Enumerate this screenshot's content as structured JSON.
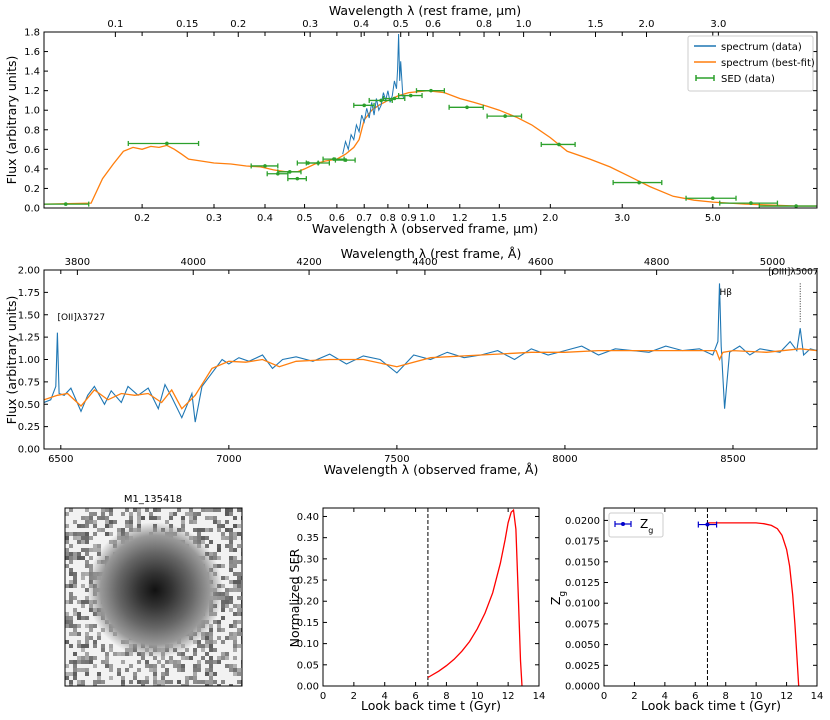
{
  "chart_data": [
    {
      "type": "line",
      "id": "sed",
      "xscale": "log",
      "xlabel": "Wavelength λ (observed frame, μm)",
      "x2label": "Wavelength λ (rest frame, μm)",
      "ylabel": "Flux (arbitrary units)",
      "xlim": [
        0.115,
        9.0
      ],
      "ylim": [
        0,
        1.8
      ],
      "x_ticks": [
        0.2,
        0.3,
        0.4,
        0.5,
        0.6,
        0.7,
        0.8,
        0.9,
        1.0,
        1.2,
        1.5,
        2.0,
        3.0,
        5.0
      ],
      "x_tick_labels": [
        "0.2",
        "0.3",
        "0.4",
        "0.5",
        "0.6",
        "0.7",
        "0.8",
        "0.9",
        "1.0",
        "1.2",
        "1.5",
        "2.0",
        "3.0",
        "5.0"
      ],
      "x2_ticks": [
        0.1,
        0.15,
        0.2,
        0.3,
        0.4,
        0.5,
        0.6,
        0.8,
        1.0,
        1.5,
        2.0,
        3.0
      ],
      "x2_tick_labels": [
        "0.1",
        "0.15",
        "0.2",
        "0.3",
        "0.4",
        "0.5",
        "0.6",
        "0.8",
        "1.0",
        "1.5",
        "2.0",
        "3.0"
      ],
      "redshift_factor": 1.72,
      "y_ticks": [
        0,
        0.2,
        0.4,
        0.6,
        0.8,
        1.0,
        1.2,
        1.4,
        1.6,
        1.8
      ],
      "y_tick_labels": [
        "0.0",
        "0.2",
        "0.4",
        "0.6",
        "0.8",
        "1.0",
        "1.2",
        "1.4",
        "1.6",
        "1.8"
      ],
      "legend": {
        "position": "top-right",
        "entries": [
          "spectrum (data)",
          "spectrum (best-fit)",
          "SED (data)"
        ]
      },
      "series": [
        {
          "name": "spectrum (best-fit)",
          "color": "#ff7f0e",
          "x": [
            0.115,
            0.15,
            0.16,
            0.17,
            0.18,
            0.19,
            0.2,
            0.21,
            0.22,
            0.23,
            0.24,
            0.25,
            0.26,
            0.28,
            0.3,
            0.33,
            0.36,
            0.39,
            0.42,
            0.45,
            0.48,
            0.5,
            0.53,
            0.56,
            0.6,
            0.63,
            0.66,
            0.68,
            0.7,
            0.73,
            0.76,
            0.8,
            0.85,
            0.9,
            1.0,
            1.1,
            1.2,
            1.3,
            1.4,
            1.5,
            1.65,
            1.8,
            2.0,
            2.2,
            2.5,
            2.8,
            3.1,
            3.5,
            4.0,
            4.5,
            5.0,
            5.5,
            6.0,
            7.0,
            8.0,
            9.0
          ],
          "y": [
            0.04,
            0.05,
            0.3,
            0.45,
            0.58,
            0.62,
            0.6,
            0.63,
            0.62,
            0.64,
            0.6,
            0.55,
            0.5,
            0.48,
            0.46,
            0.45,
            0.43,
            0.42,
            0.39,
            0.37,
            0.37,
            0.4,
            0.45,
            0.48,
            0.5,
            0.55,
            0.62,
            0.7,
            0.9,
            1.0,
            1.05,
            1.1,
            1.15,
            1.18,
            1.2,
            1.18,
            1.12,
            1.08,
            1.04,
            1.0,
            0.93,
            0.85,
            0.72,
            0.58,
            0.5,
            0.42,
            0.33,
            0.22,
            0.12,
            0.08,
            0.06,
            0.05,
            0.04,
            0.03,
            0.02,
            0.02
          ]
        },
        {
          "name": "spectrum (data)",
          "color": "#1f77b4",
          "x": [
            0.62,
            0.63,
            0.64,
            0.65,
            0.66,
            0.67,
            0.68,
            0.69,
            0.7,
            0.71,
            0.72,
            0.73,
            0.74,
            0.75,
            0.76,
            0.77,
            0.78,
            0.79,
            0.8,
            0.81,
            0.82,
            0.83,
            0.84,
            0.845,
            0.85,
            0.855,
            0.86,
            0.87,
            0.875
          ],
          "y": [
            0.55,
            0.68,
            0.6,
            0.75,
            0.7,
            0.85,
            0.78,
            0.95,
            0.88,
            1.02,
            0.92,
            1.08,
            0.95,
            1.12,
            1.0,
            1.05,
            1.18,
            1.1,
            1.2,
            1.08,
            1.15,
            1.3,
            1.22,
            1.42,
            1.78,
            1.3,
            1.5,
            1.15,
            1.12
          ]
        }
      ],
      "sed_points": {
        "name": "SED (data)",
        "color": "#2ca02c",
        "x": [
          0.13,
          0.23,
          0.4,
          0.43,
          0.46,
          0.48,
          0.51,
          0.54,
          0.59,
          0.63,
          0.7,
          0.77,
          0.83,
          0.91,
          1.02,
          1.25,
          1.55,
          2.1,
          3.3,
          5.0,
          6.2,
          8.0
        ],
        "xerr": [
          0.018,
          0.045,
          0.03,
          0.025,
          0.03,
          0.025,
          0.03,
          0.035,
          0.035,
          0.035,
          0.04,
          0.05,
          0.05,
          0.06,
          0.08,
          0.12,
          0.15,
          0.2,
          0.45,
          0.7,
          1.0,
          1.5
        ],
        "y": [
          0.04,
          0.66,
          0.43,
          0.35,
          0.37,
          0.3,
          0.46,
          0.46,
          0.5,
          0.49,
          1.05,
          1.1,
          1.12,
          1.15,
          1.2,
          1.03,
          0.94,
          0.65,
          0.26,
          0.1,
          0.05,
          0.02
        ]
      }
    },
    {
      "type": "line",
      "id": "spectrum",
      "xlabel": "Wavelength λ (observed frame, Å)",
      "x2label": "Wavelength λ (rest frame, Å)",
      "ylabel": "Flux (arbitrary units)",
      "xlim": [
        6450,
        8750
      ],
      "ylim": [
        0,
        2.0
      ],
      "x_ticks": [
        6500,
        7000,
        7500,
        8000,
        8500
      ],
      "x_tick_labels": [
        "6500",
        "7000",
        "7500",
        "8000",
        "8500"
      ],
      "x2_ticks": [
        3800,
        4000,
        4200,
        4400,
        4600,
        4800,
        5000
      ],
      "x2_tick_labels": [
        "3800",
        "4000",
        "4200",
        "4400",
        "4600",
        "4800",
        "5000"
      ],
      "redshift_factor": 1.7235,
      "y_ticks": [
        0,
        0.25,
        0.5,
        0.75,
        1.0,
        1.25,
        1.5,
        1.75,
        2.0
      ],
      "y_tick_labels": [
        "0.00",
        "0.25",
        "0.50",
        "0.75",
        "1.00",
        "1.25",
        "1.50",
        "1.75",
        "2.00"
      ],
      "annotations": [
        {
          "text": "[OII]λ3727",
          "x": 6490,
          "y": 1.33
        },
        {
          "text": "Hβ",
          "x": 8460,
          "y": 1.72
        },
        {
          "text": "[OIII]λ5007",
          "x": 8680,
          "y": 1.95
        }
      ],
      "series": [
        {
          "name": "spectrum (data)",
          "color": "#1f77b4",
          "x": [
            6450,
            6470,
            6485,
            6490,
            6495,
            6510,
            6530,
            6560,
            6580,
            6600,
            6630,
            6650,
            6680,
            6700,
            6730,
            6760,
            6790,
            6810,
            6830,
            6860,
            6890,
            6900,
            6920,
            6950,
            6980,
            7000,
            7030,
            7060,
            7100,
            7130,
            7160,
            7200,
            7250,
            7300,
            7350,
            7400,
            7450,
            7500,
            7550,
            7600,
            7650,
            7700,
            7750,
            7800,
            7850,
            7900,
            7950,
            8000,
            8050,
            8100,
            8150,
            8200,
            8250,
            8300,
            8350,
            8400,
            8440,
            8455,
            8460,
            8465,
            8475,
            8490,
            8520,
            8550,
            8580,
            8610,
            8640,
            8670,
            8690,
            8700,
            8710,
            8730,
            8750
          ],
          "y": [
            0.52,
            0.55,
            0.7,
            1.3,
            0.62,
            0.6,
            0.68,
            0.42,
            0.6,
            0.7,
            0.5,
            0.65,
            0.52,
            0.7,
            0.6,
            0.68,
            0.45,
            0.72,
            0.58,
            0.35,
            0.62,
            0.3,
            0.7,
            0.85,
            1.0,
            0.95,
            1.02,
            0.98,
            1.05,
            0.9,
            1.0,
            1.03,
            0.98,
            1.06,
            0.95,
            1.04,
            1.0,
            0.85,
            1.05,
            1.0,
            1.08,
            1.02,
            1.05,
            1.1,
            1.0,
            1.12,
            1.05,
            1.1,
            1.15,
            1.05,
            1.12,
            1.1,
            1.08,
            1.15,
            1.1,
            1.12,
            1.05,
            1.2,
            1.85,
            1.15,
            0.45,
            1.08,
            1.15,
            1.05,
            1.12,
            1.1,
            1.08,
            1.2,
            1.1,
            1.35,
            1.05,
            1.12,
            1.1
          ]
        },
        {
          "name": "spectrum (best-fit)",
          "color": "#ff7f0e",
          "x": [
            6450,
            6490,
            6520,
            6560,
            6600,
            6640,
            6680,
            6720,
            6760,
            6800,
            6830,
            6860,
            6900,
            6950,
            7000,
            7050,
            7100,
            7150,
            7200,
            7300,
            7400,
            7500,
            7600,
            7700,
            7800,
            7900,
            8000,
            8100,
            8200,
            8300,
            8400,
            8450,
            8460,
            8470,
            8500,
            8600,
            8700,
            8750
          ],
          "y": [
            0.55,
            0.6,
            0.62,
            0.48,
            0.66,
            0.55,
            0.62,
            0.6,
            0.62,
            0.52,
            0.66,
            0.45,
            0.6,
            0.9,
            0.98,
            0.97,
            1.0,
            0.92,
            0.98,
            1.0,
            1.0,
            0.92,
            1.02,
            1.04,
            1.06,
            1.08,
            1.08,
            1.1,
            1.1,
            1.1,
            1.1,
            1.1,
            1.0,
            1.08,
            1.1,
            1.08,
            1.12,
            1.1
          ]
        }
      ]
    },
    {
      "type": "line",
      "id": "sfr",
      "xlabel": "Look back time t (Gyr)",
      "ylabel": "Normalized SFR",
      "xlim": [
        0,
        14
      ],
      "ylim": [
        0,
        0.42
      ],
      "x_ticks": [
        0,
        2,
        4,
        6,
        8,
        10,
        12,
        14
      ],
      "x_tick_labels": [
        "0",
        "2",
        "4",
        "6",
        "8",
        "10",
        "12",
        "14"
      ],
      "y_ticks": [
        0,
        0.05,
        0.1,
        0.15,
        0.2,
        0.25,
        0.3,
        0.35,
        0.4
      ],
      "y_tick_labels": [
        "0.00",
        "0.05",
        "0.10",
        "0.15",
        "0.20",
        "0.25",
        "0.30",
        "0.35",
        "0.40"
      ],
      "vline_x": 6.8,
      "series": [
        {
          "color": "#ff0000",
          "x": [
            6.8,
            7.5,
            8.0,
            8.5,
            9.0,
            9.5,
            10.0,
            10.5,
            11.0,
            11.5,
            11.8,
            12.0,
            12.2,
            12.35,
            12.5,
            12.65,
            12.8,
            12.9
          ],
          "y": [
            0.02,
            0.035,
            0.048,
            0.063,
            0.082,
            0.105,
            0.135,
            0.172,
            0.22,
            0.29,
            0.345,
            0.385,
            0.41,
            0.415,
            0.37,
            0.22,
            0.06,
            0.0
          ]
        }
      ]
    },
    {
      "type": "line",
      "id": "metallicity",
      "xlabel": "Look back time t (Gyr)",
      "ylabel": "Z_g",
      "xlim": [
        0,
        14
      ],
      "ylim": [
        0,
        0.0215
      ],
      "x_ticks": [
        0,
        2,
        4,
        6,
        8,
        10,
        12,
        14
      ],
      "x_tick_labels": [
        "0",
        "2",
        "4",
        "6",
        "8",
        "10",
        "12",
        "14"
      ],
      "y_ticks": [
        0,
        0.0025,
        0.005,
        0.0075,
        0.01,
        0.0125,
        0.015,
        0.0175,
        0.02
      ],
      "y_tick_labels": [
        "0.0000",
        "0.0025",
        "0.0050",
        "0.0075",
        "0.0100",
        "0.0125",
        "0.0150",
        "0.0175",
        "0.0200"
      ],
      "vline_x": 6.8,
      "legend": {
        "position": "top-left",
        "entries": [
          "Z_g"
        ]
      },
      "point": {
        "name": "Z_g",
        "x": 6.8,
        "xerr": 0.6,
        "y": 0.0195,
        "color": "#0000cc"
      },
      "series": [
        {
          "color": "#ff0000",
          "x": [
            6.8,
            8.0,
            9.0,
            10.0,
            10.5,
            11.0,
            11.4,
            11.7,
            12.0,
            12.2,
            12.4,
            12.55,
            12.7,
            12.8
          ],
          "y": [
            0.0197,
            0.0197,
            0.0197,
            0.0197,
            0.0196,
            0.0194,
            0.019,
            0.0182,
            0.0165,
            0.0145,
            0.011,
            0.0075,
            0.003,
            0.0
          ]
        }
      ]
    }
  ],
  "image_panel": {
    "title": "M1_135418"
  }
}
